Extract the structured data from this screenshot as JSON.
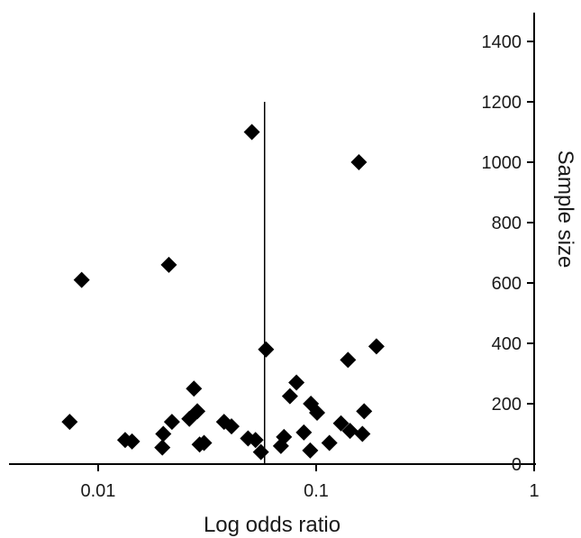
{
  "chart_data": {
    "type": "scatter",
    "title": "",
    "xlabel": "Log odds ratio",
    "ylabel": "Sample size",
    "x_scale": "log",
    "xlim": [
      0.0039,
      1
    ],
    "ylim": [
      0,
      1400
    ],
    "y_axis_side": "right",
    "grid": false,
    "x_ticks": [
      {
        "value": 0.01,
        "label": "0.01"
      },
      {
        "value": 0.1,
        "label": "0.1"
      },
      {
        "value": 1,
        "label": "1"
      }
    ],
    "y_ticks": [
      {
        "value": 0,
        "label": "0"
      },
      {
        "value": 200,
        "label": "200"
      },
      {
        "value": 400,
        "label": "400"
      },
      {
        "value": 600,
        "label": "600"
      },
      {
        "value": 800,
        "label": "800"
      },
      {
        "value": 1000,
        "label": "1000"
      },
      {
        "value": 1200,
        "label": "1200"
      },
      {
        "value": 1400,
        "label": "1400"
      }
    ],
    "reference_line": {
      "x": 0.058,
      "y_range": [
        0,
        1200
      ]
    },
    "points": [
      {
        "x": 0.0074,
        "y": 140
      },
      {
        "x": 0.0084,
        "y": 610
      },
      {
        "x": 0.0133,
        "y": 80
      },
      {
        "x": 0.0143,
        "y": 75
      },
      {
        "x": 0.0197,
        "y": 55
      },
      {
        "x": 0.0199,
        "y": 100
      },
      {
        "x": 0.0211,
        "y": 660
      },
      {
        "x": 0.0218,
        "y": 140
      },
      {
        "x": 0.0262,
        "y": 150
      },
      {
        "x": 0.0275,
        "y": 250
      },
      {
        "x": 0.0285,
        "y": 175
      },
      {
        "x": 0.0292,
        "y": 65
      },
      {
        "x": 0.0306,
        "y": 70
      },
      {
        "x": 0.0378,
        "y": 140
      },
      {
        "x": 0.0409,
        "y": 125
      },
      {
        "x": 0.0487,
        "y": 85
      },
      {
        "x": 0.0507,
        "y": 1100
      },
      {
        "x": 0.0527,
        "y": 80
      },
      {
        "x": 0.0558,
        "y": 40
      },
      {
        "x": 0.0589,
        "y": 380
      },
      {
        "x": 0.0689,
        "y": 60
      },
      {
        "x": 0.0712,
        "y": 90
      },
      {
        "x": 0.0758,
        "y": 225
      },
      {
        "x": 0.0812,
        "y": 270
      },
      {
        "x": 0.0878,
        "y": 105
      },
      {
        "x": 0.0939,
        "y": 45
      },
      {
        "x": 0.0946,
        "y": 200
      },
      {
        "x": 0.101,
        "y": 170
      },
      {
        "x": 0.115,
        "y": 70
      },
      {
        "x": 0.13,
        "y": 135
      },
      {
        "x": 0.14,
        "y": 345
      },
      {
        "x": 0.143,
        "y": 110
      },
      {
        "x": 0.157,
        "y": 1000
      },
      {
        "x": 0.163,
        "y": 100
      },
      {
        "x": 0.166,
        "y": 175
      },
      {
        "x": 0.189,
        "y": 390
      }
    ]
  }
}
